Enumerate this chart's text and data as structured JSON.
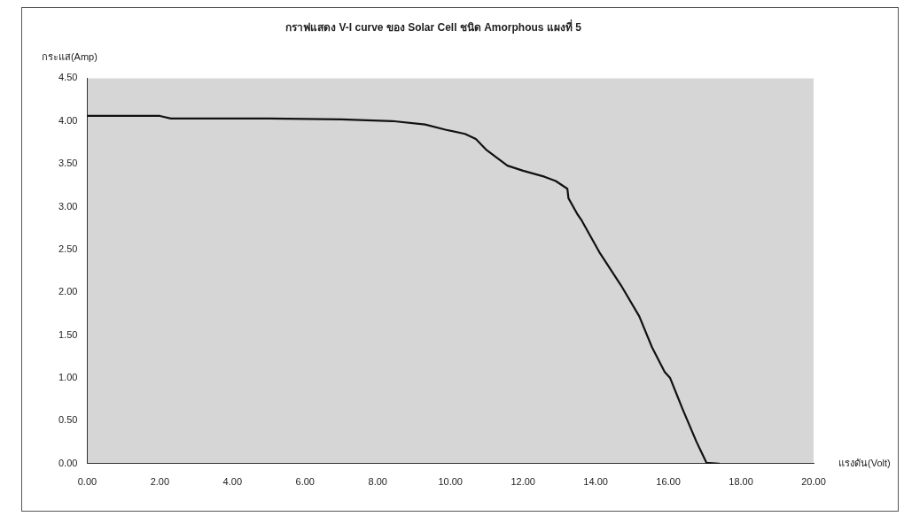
{
  "chart_data": {
    "type": "line",
    "title": "กราฟแสดง V-I curve ของ Solar Cell ชนิด Amorphous แผงที่ 5",
    "xlabel": "แรงดัน(Volt)",
    "ylabel": "กระแส(Amp)",
    "xlim": [
      0,
      20
    ],
    "xticks": [
      {
        "value": 0,
        "label": "0.00"
      },
      {
        "value": 2,
        "label": "2.00"
      },
      {
        "value": 4,
        "label": "4.00"
      },
      {
        "value": 6,
        "label": "6.00"
      },
      {
        "value": 8,
        "label": "8.00"
      },
      {
        "value": 10,
        "label": "10.00"
      },
      {
        "value": 12,
        "label": "12.00"
      },
      {
        "value": 14,
        "label": "14.00"
      },
      {
        "value": 16,
        "label": "16.00"
      },
      {
        "value": 18,
        "label": "18.00"
      },
      {
        "value": 20,
        "label": "20.00"
      }
    ],
    "ylim": [
      0,
      4.5
    ],
    "yticks": [
      {
        "value": 0,
        "label": "0.00"
      },
      {
        "value": 0.5,
        "label": "0.50"
      },
      {
        "value": 1,
        "label": "1.00"
      },
      {
        "value": 1.5,
        "label": "1.50"
      },
      {
        "value": 2,
        "label": "2.00"
      },
      {
        "value": 2.5,
        "label": "2.50"
      },
      {
        "value": 3,
        "label": "3.00"
      },
      {
        "value": 3.5,
        "label": "3.50"
      },
      {
        "value": 4,
        "label": "4.00"
      },
      {
        "value": 4.5,
        "label": "4.50"
      }
    ],
    "grid": false,
    "legend": false,
    "marker": "none",
    "line_style": "solid",
    "series": [
      {
        "color": "#111111",
        "x": [
          0,
          2.0,
          2.3,
          5.0,
          7.0,
          8.4,
          9.3,
          9.86,
          10.4,
          10.7,
          11.0,
          11.57,
          12.0,
          12.59,
          12.9,
          13.22,
          13.25,
          13.5,
          13.6,
          14.1,
          14.7,
          15.2,
          15.55,
          15.9,
          16.05,
          16.4,
          16.77,
          17.05,
          17.4
        ],
        "values": [
          4.06,
          4.06,
          4.03,
          4.03,
          4.02,
          4.0,
          3.96,
          3.9,
          3.85,
          3.79,
          3.66,
          3.48,
          3.42,
          3.35,
          3.3,
          3.21,
          3.1,
          2.91,
          2.85,
          2.47,
          2.08,
          1.72,
          1.36,
          1.07,
          1.0,
          0.63,
          0.26,
          0.01,
          0.0
        ]
      }
    ]
  }
}
